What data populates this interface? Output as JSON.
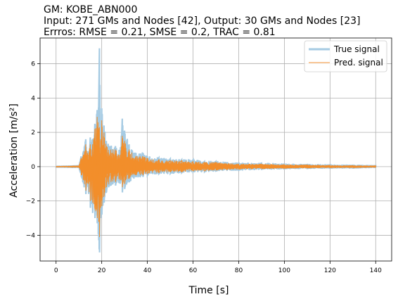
{
  "title_lines": [
    "GM: KOBE_ABN000",
    "Input: 271 GMs and Nodes [42], Output: 30 GMs and Nodes [23]",
    "Errros: RMSE = 0.21, SMSE = 0.2, TRAC = 0.81"
  ],
  "colors": {
    "true_signal": "#a6cbe3",
    "pred_signal": "#f28e2b",
    "grid": "#b0b0b0",
    "axis": "#000000"
  },
  "chart_data": {
    "type": "line",
    "title": "GM: KOBE_ABN000",
    "xlabel": "Time [s]",
    "ylabel": "Acceleration [m/s²]",
    "xlim": [
      -7,
      147
    ],
    "ylim": [
      -5.5,
      7.5
    ],
    "xticks": [
      0,
      20,
      40,
      60,
      80,
      100,
      120,
      140
    ],
    "yticks": [
      -4,
      -2,
      0,
      2,
      4,
      6
    ],
    "xtick_labels": [
      "0",
      "20",
      "40",
      "60",
      "80",
      "100",
      "120",
      "140"
    ],
    "ytick_labels": [
      "−4",
      "−2",
      "0",
      "2",
      "4",
      "6"
    ],
    "grid": true,
    "legend_position": "top-right",
    "series": [
      {
        "name": "True signal",
        "envelope": {
          "t": [
            0,
            10,
            11,
            12,
            13,
            14,
            15,
            16,
            17,
            18,
            19,
            19.5,
            20,
            21,
            22,
            24,
            26,
            28,
            29,
            30,
            32,
            35,
            38,
            40,
            45,
            50,
            55,
            60,
            65,
            70,
            80,
            90,
            100,
            110,
            120,
            130,
            140
          ],
          "upper": [
            0.02,
            0.05,
            0.6,
            0.9,
            1.6,
            0.9,
            1.7,
            1.6,
            2.5,
            3.3,
            6.9,
            2.0,
            3.4,
            2.4,
            1.5,
            1.2,
            1.2,
            0.9,
            2.8,
            2.1,
            1.3,
            0.8,
            0.8,
            0.6,
            0.5,
            0.45,
            0.4,
            0.4,
            0.3,
            0.3,
            0.2,
            0.2,
            0.15,
            0.12,
            0.1,
            0.08,
            0.06
          ],
          "lower": [
            -0.02,
            -0.05,
            -0.6,
            -1.0,
            -1.6,
            -1.2,
            -2.4,
            -2.7,
            -3.0,
            -3.3,
            -5.0,
            -3.0,
            -2.8,
            -2.1,
            -1.5,
            -1.1,
            -1.1,
            -1.0,
            -1.5,
            -1.3,
            -0.9,
            -0.6,
            -0.6,
            -0.5,
            -0.4,
            -0.4,
            -0.35,
            -0.3,
            -0.3,
            -0.25,
            -0.2,
            -0.15,
            -0.12,
            -0.1,
            -0.08,
            -0.08,
            -0.05
          ]
        }
      },
      {
        "name": "Pred. signal",
        "envelope": {
          "t": [
            0,
            10,
            11,
            12,
            13,
            14,
            15,
            16,
            17,
            18,
            19,
            19.5,
            20,
            21,
            22,
            24,
            26,
            28,
            29,
            30,
            32,
            35,
            38,
            40,
            45,
            50,
            55,
            60,
            65,
            70,
            80,
            90,
            100,
            110,
            120,
            130,
            140
          ],
          "upper": [
            0.02,
            0.04,
            0.5,
            0.7,
            1.3,
            0.7,
            1.3,
            1.3,
            2.2,
            2.9,
            2.3,
            1.6,
            2.7,
            2.0,
            1.2,
            1.0,
            1.0,
            0.7,
            1.8,
            1.5,
            1.0,
            0.6,
            0.6,
            0.5,
            0.4,
            0.35,
            0.35,
            0.3,
            0.25,
            0.25,
            0.15,
            0.15,
            0.12,
            0.1,
            0.08,
            0.06,
            0.05
          ],
          "lower": [
            -0.02,
            -0.04,
            -0.5,
            -0.8,
            -1.4,
            -1.0,
            -2.0,
            -2.1,
            -2.5,
            -3.0,
            -4.1,
            -2.4,
            -2.3,
            -1.7,
            -1.2,
            -0.9,
            -0.9,
            -0.8,
            -1.2,
            -1.0,
            -0.7,
            -0.5,
            -0.5,
            -0.4,
            -0.35,
            -0.3,
            -0.3,
            -0.25,
            -0.25,
            -0.2,
            -0.15,
            -0.12,
            -0.1,
            -0.08,
            -0.06,
            -0.06,
            -0.04
          ]
        }
      }
    ]
  }
}
